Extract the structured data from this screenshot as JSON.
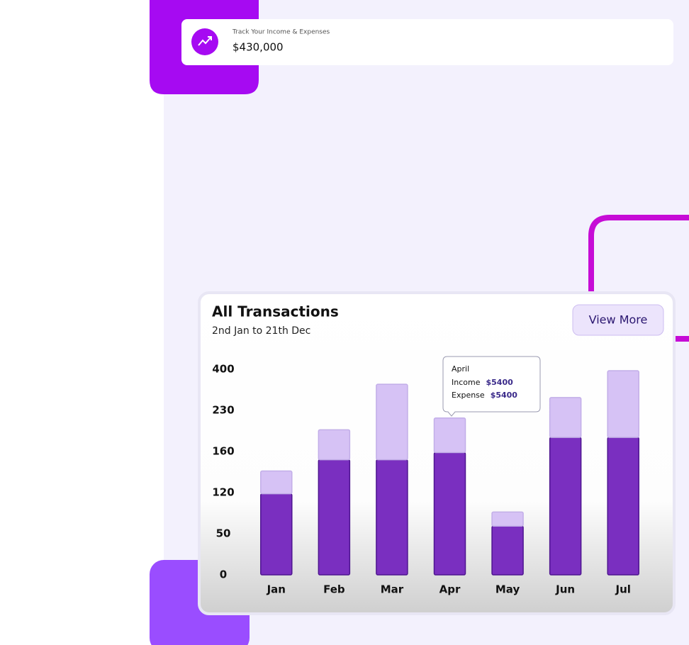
{
  "header": {
    "caption": "Track Your Income & Expenses",
    "amount": "$430,000"
  },
  "button": "View More",
  "chart_data": {
    "type": "bar",
    "title": "All Transactions",
    "subtitle": "2nd Jan to 21th Dec",
    "categories": [
      "Jan",
      "Feb",
      "Mar",
      "Apr",
      "May",
      "Jun",
      "Jul"
    ],
    "series": [
      {
        "name": "Income",
        "color": "#7a2fc0",
        "values": [
          118,
          152,
          152,
          159,
          63,
          184,
          184
        ]
      },
      {
        "name": "Expense",
        "color": "#d6c2f5",
        "values": [
          23,
          45,
          186,
          58,
          24,
          99,
          210
        ]
      }
    ],
    "stacked": true,
    "ylim": [
      0,
      400
    ],
    "yticks": [
      0,
      50,
      120,
      160,
      230,
      400
    ],
    "tooltip": {
      "title": "April",
      "values": [
        "$5400",
        "$5400"
      ]
    }
  }
}
